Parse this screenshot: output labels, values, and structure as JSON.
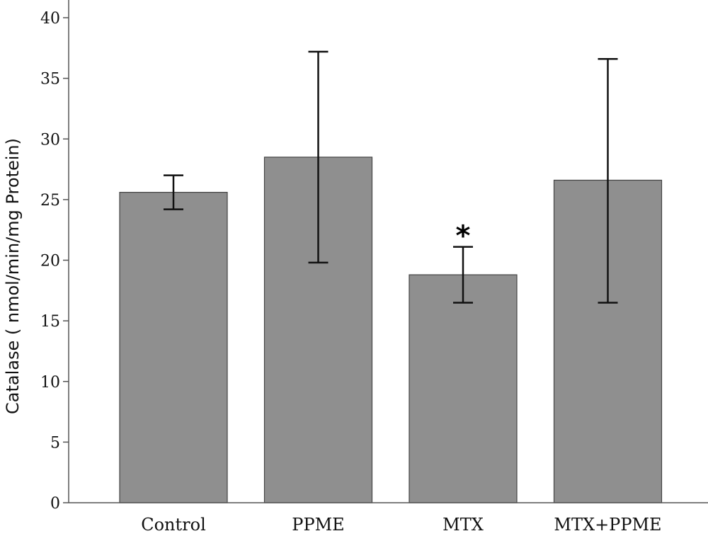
{
  "chart_data": {
    "type": "bar",
    "title": "",
    "xlabel": "",
    "ylabel": "Catalase ( nmol/min/mg Protein)",
    "ylim": [
      0,
      40
    ],
    "yticks": [
      0,
      5,
      10,
      15,
      20,
      25,
      30,
      35,
      40
    ],
    "ytick_labels": [
      "0",
      "5",
      "10",
      "15",
      "20",
      "25",
      "30",
      "35",
      "40"
    ],
    "categories": [
      "Control",
      "PPME",
      "MTX",
      "MTX+PPME"
    ],
    "values": [
      25.6,
      28.5,
      18.8,
      26.6
    ],
    "error_low": [
      24.2,
      19.8,
      16.5,
      16.5
    ],
    "error_high": [
      27.0,
      37.2,
      21.1,
      36.6
    ],
    "annotations": [
      {
        "category": "MTX",
        "text": "*"
      }
    ],
    "bar_color": "#8f8f8f",
    "grid": false,
    "legend": "none"
  }
}
